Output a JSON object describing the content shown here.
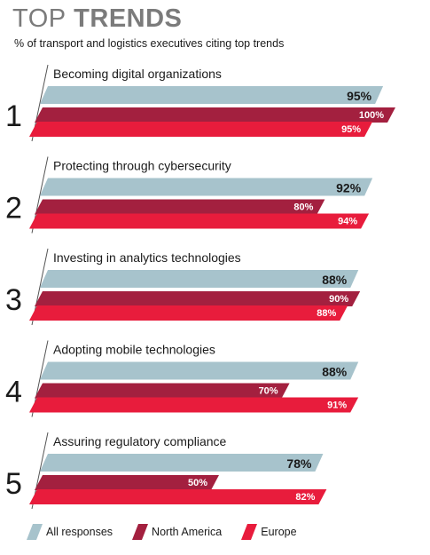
{
  "colors": {
    "all_responses": "#a7c3cc",
    "north_america": "#a3203f",
    "europe": "#e81c3c"
  },
  "chart_data": {
    "type": "bar",
    "orientation": "horizontal",
    "title_light": "TOP",
    "title_bold": "TRENDS",
    "subtitle": "% of transport and logistics executives citing top trends",
    "categories": [
      "Becoming digital organizations",
      "Protecting through cybersecurity",
      "Investing in analytics technologies",
      "Adopting mobile technologies",
      "Assuring regulatory compliance"
    ],
    "ranks": [
      "1",
      "2",
      "3",
      "4",
      "5"
    ],
    "series": [
      {
        "name": "All responses",
        "values": [
          95,
          92,
          88,
          88,
          78
        ],
        "labels": [
          "95%",
          "92%",
          "88%",
          "88%",
          "78%"
        ]
      },
      {
        "name": "North America",
        "values": [
          100,
          80,
          90,
          70,
          50
        ],
        "labels": [
          "100%",
          "80%",
          "90%",
          "70%",
          "50%"
        ]
      },
      {
        "name": "Europe",
        "values": [
          95,
          94,
          88,
          91,
          82
        ],
        "labels": [
          "95%",
          "94%",
          "88%",
          "91%",
          "82%"
        ]
      }
    ],
    "xlim": [
      0,
      100
    ],
    "grid": false,
    "legend_position": "bottom"
  }
}
